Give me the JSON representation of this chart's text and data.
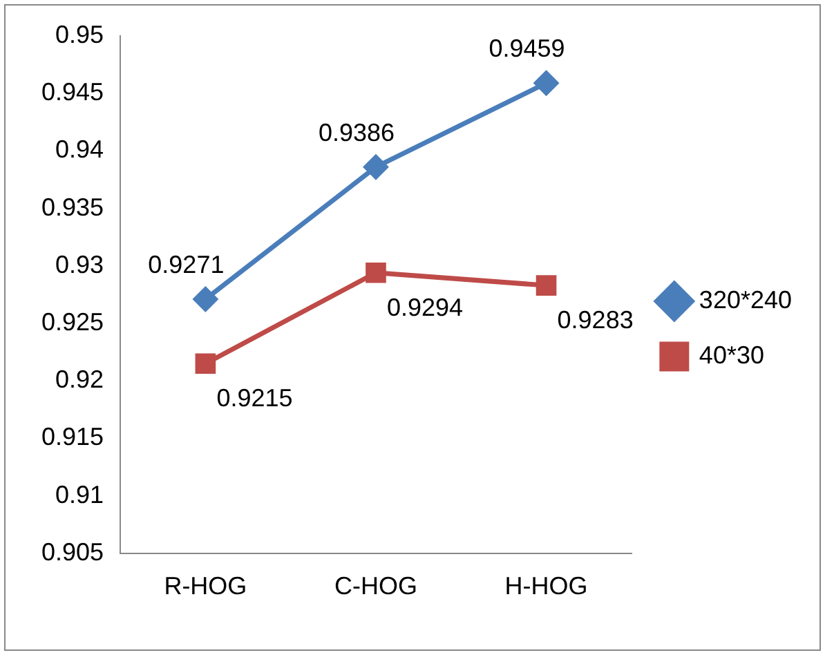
{
  "chart_data": {
    "type": "line",
    "categories": [
      "R-HOG",
      "C-HOG",
      "H-HOG"
    ],
    "series": [
      {
        "name": "320*240",
        "color": "#4a7ebb",
        "marker": "diamond",
        "values": [
          0.9271,
          0.9386,
          0.9459
        ]
      },
      {
        "name": "40*30",
        "color": "#be4b48",
        "marker": "square",
        "values": [
          0.9215,
          0.9294,
          0.9283
        ]
      }
    ],
    "ylim": [
      0.905,
      0.95
    ],
    "yticks": [
      0.905,
      0.91,
      0.915,
      0.92,
      0.925,
      0.93,
      0.935,
      0.94,
      0.945,
      0.95
    ],
    "grid": false,
    "legend": "right",
    "data_labels": true
  }
}
